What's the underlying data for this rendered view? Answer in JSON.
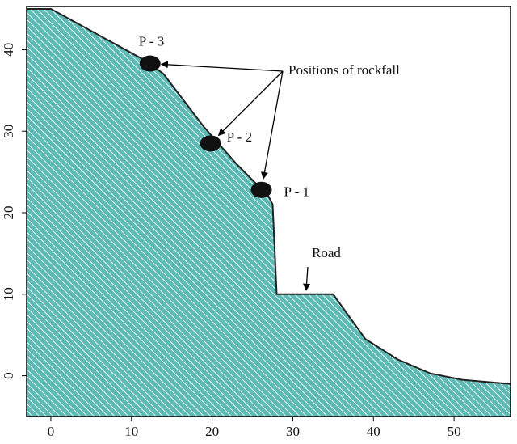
{
  "chart_data": {
    "type": "area",
    "x": [
      -3,
      0,
      12,
      14,
      19,
      23,
      27,
      27.5,
      28,
      35,
      39,
      43,
      47,
      51,
      57
    ],
    "y": [
      45,
      45,
      38.5,
      37,
      30.5,
      26,
      22,
      21,
      10,
      10,
      4.5,
      2,
      0.3,
      -0.5,
      -1
    ],
    "color": "#5dbab5",
    "xlim": [
      -3,
      57
    ],
    "ylim": [
      -5,
      45.3
    ],
    "xticks": [
      0,
      10,
      20,
      30,
      40,
      50
    ],
    "yticks": [
      0,
      10,
      20,
      30,
      40
    ],
    "points": [
      {
        "label": "P - 3",
        "x": 12.3,
        "y": 38.3
      },
      {
        "label": "P - 2",
        "x": 19.8,
        "y": 28.5
      },
      {
        "label": "P - 1",
        "x": 26.1,
        "y": 22.8
      }
    ],
    "points_annotation": "Positions of rockfall",
    "road_annotation": "Road"
  }
}
